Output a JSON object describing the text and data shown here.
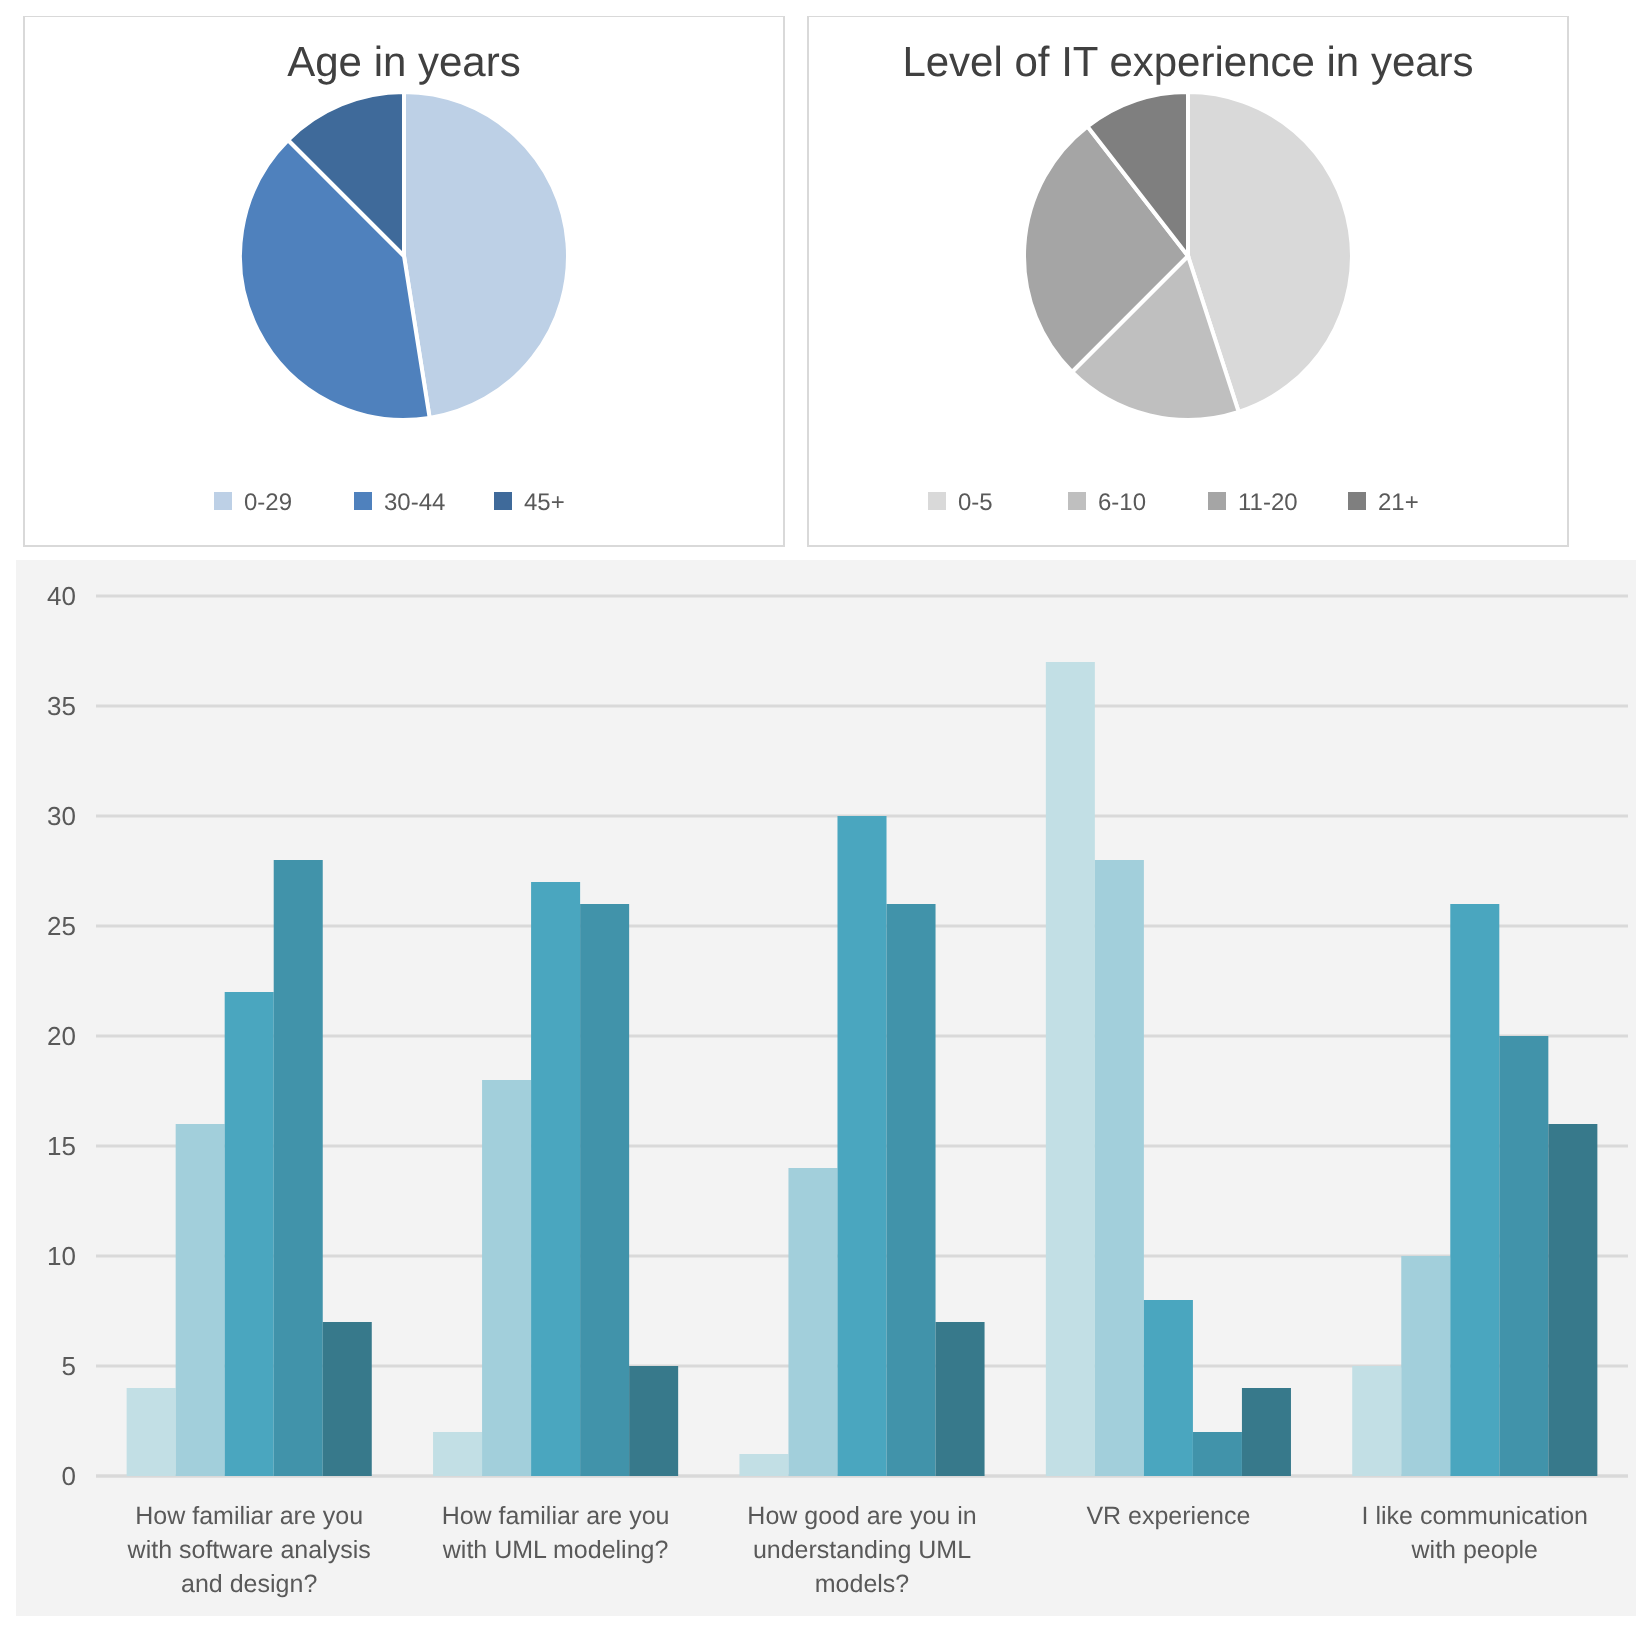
{
  "chart_data": [
    {
      "type": "pie",
      "title": "Age in years",
      "categories": [
        "0-29",
        "30-44",
        "45+"
      ],
      "values": [
        47.5,
        40,
        12.5
      ],
      "colors": [
        "#bdd0e6",
        "#4f81bd",
        "#3f6a9a"
      ],
      "legend": "bottom"
    },
    {
      "type": "pie",
      "title": "Level of IT experience in years",
      "categories": [
        "0-5",
        "6-10",
        "11-20",
        "21+"
      ],
      "values": [
        45,
        17.5,
        27,
        10.5
      ],
      "colors": [
        "#d9d9d9",
        "#bfbfbf",
        "#a5a5a5",
        "#7f7f7f"
      ],
      "legend": "bottom"
    },
    {
      "type": "bar",
      "categories": [
        "How familiar are you with software analysis and design?",
        "How familiar are you with UML modeling?",
        "How good are you in understanding UML models?",
        "VR experience",
        "I like communication with people"
      ],
      "series": [
        {
          "color": "#c2dfe5",
          "values": [
            4,
            2,
            1,
            37,
            5
          ]
        },
        {
          "color": "#a2cfdb",
          "values": [
            16,
            18,
            14,
            28,
            10
          ]
        },
        {
          "color": "#4aa6bf",
          "values": [
            22,
            27,
            30,
            8,
            26
          ]
        },
        {
          "color": "#4193aa",
          "values": [
            28,
            26,
            26,
            2,
            20
          ]
        },
        {
          "color": "#37798b",
          "values": [
            7,
            5,
            7,
            4,
            16
          ]
        }
      ],
      "ylim": [
        0,
        40
      ],
      "yticks": [
        0,
        5,
        10,
        15,
        20,
        25,
        30,
        35,
        40
      ],
      "grid": "y"
    }
  ]
}
